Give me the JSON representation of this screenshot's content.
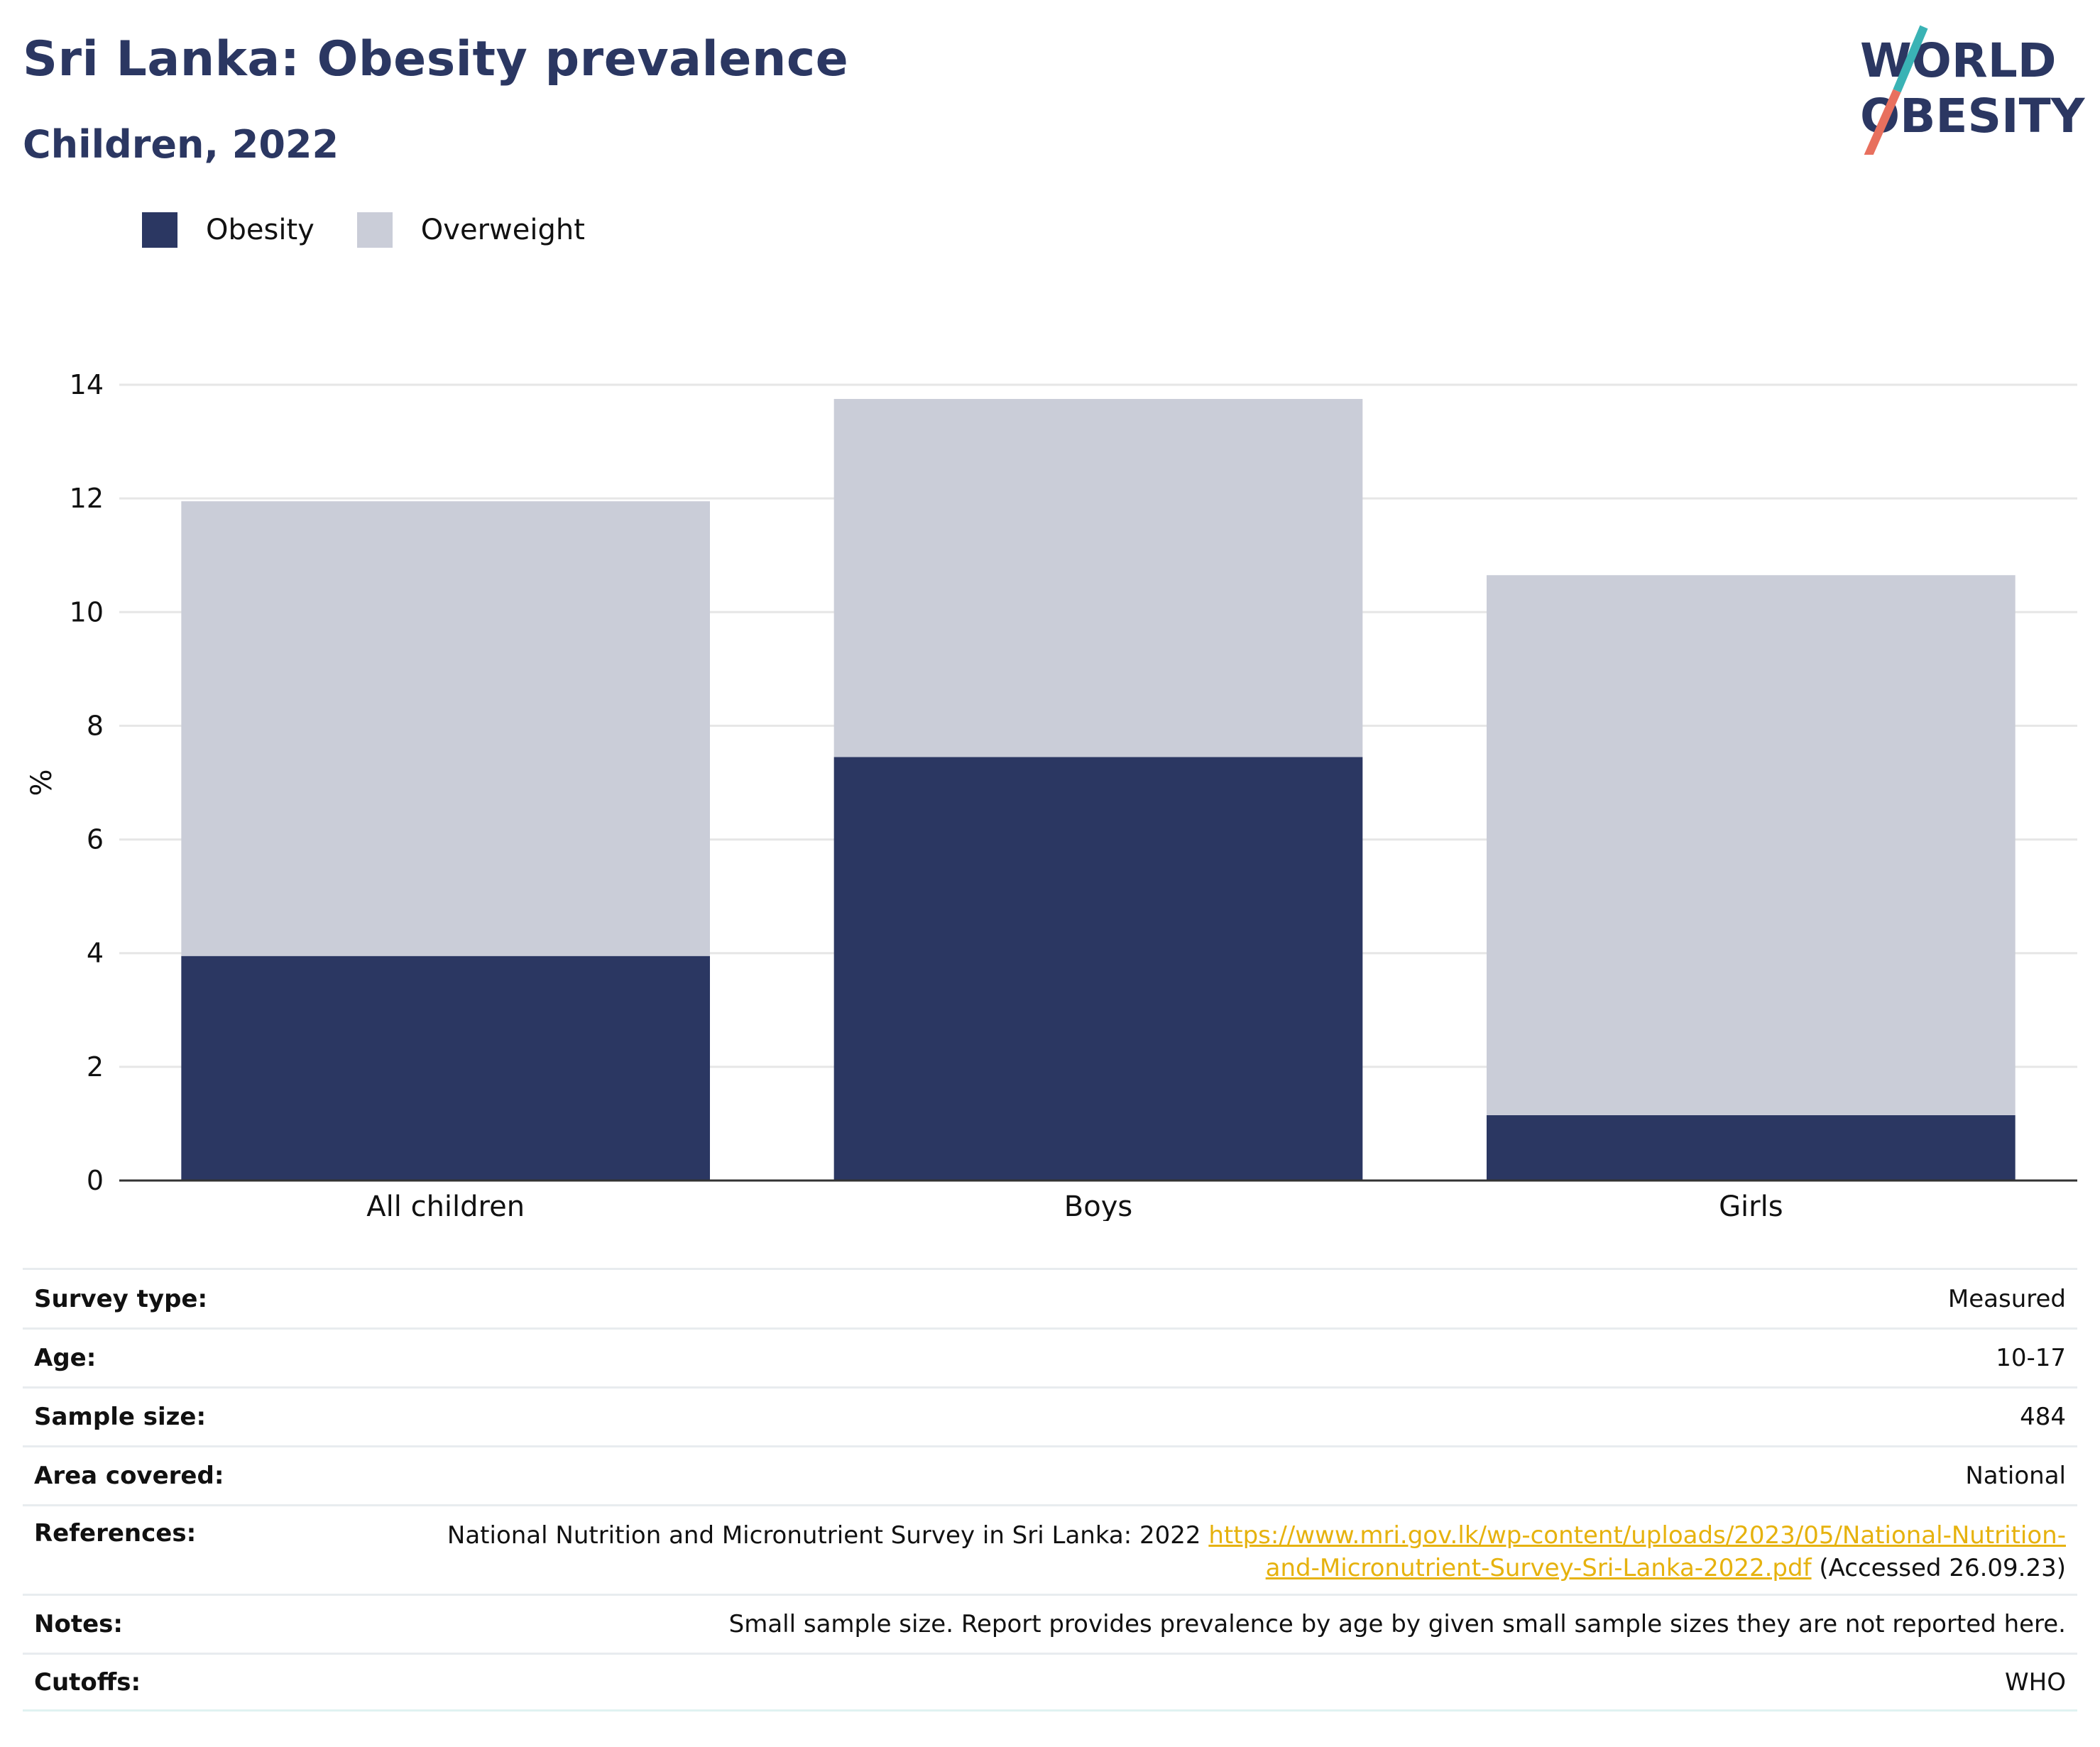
{
  "header": {
    "title": "Sri Lanka: Obesity prevalence",
    "subtitle": "Children, 2022",
    "logo_text_line1": "WORLD",
    "logo_text_line2": "OBESITY"
  },
  "colors": {
    "obesity": "#2b3762",
    "overweight": "#cacdd8",
    "title": "#2b3762",
    "link": "#e6b20e",
    "logo_teal": "#3ab3b5",
    "logo_coral": "#e8705e"
  },
  "chart_data": {
    "type": "bar",
    "stacked": true,
    "categories": [
      "All children",
      "Boys",
      "Girls"
    ],
    "series": [
      {
        "name": "Obesity",
        "values": [
          3.95,
          7.45,
          1.15
        ],
        "color": "#2b3762"
      },
      {
        "name": "Overweight",
        "values": [
          8.0,
          6.3,
          9.5
        ],
        "color": "#cacdd8"
      }
    ],
    "ylabel": "%",
    "ylim": [
      0,
      14
    ],
    "yticks": [
      0,
      2,
      4,
      6,
      8,
      10,
      12,
      14
    ],
    "grid": true,
    "legend": "top-left"
  },
  "meta": [
    {
      "key": "Survey type:",
      "value": "Measured"
    },
    {
      "key": "Age:",
      "value": "10-17"
    },
    {
      "key": "Sample size:",
      "value": "484"
    },
    {
      "key": "Area covered:",
      "value": "National"
    },
    {
      "key": "References:",
      "value_pre": "National Nutrition and Micronutrient Survey in Sri Lanka: 2022 ",
      "link_line1": "https://www.mri.gov.lk/wp-content/uploads/2023/05/National-Nutrition-",
      "link_line2": "and-Micronutrient-Survey-Sri-Lanka-2022.pdf",
      "value_post": " (Accessed 26.09.23)"
    },
    {
      "key": "Notes:",
      "value": "Small sample size. Report provides prevalence by age by given small sample sizes they are not reported here."
    },
    {
      "key": "Cutoffs:",
      "value": "WHO"
    }
  ]
}
